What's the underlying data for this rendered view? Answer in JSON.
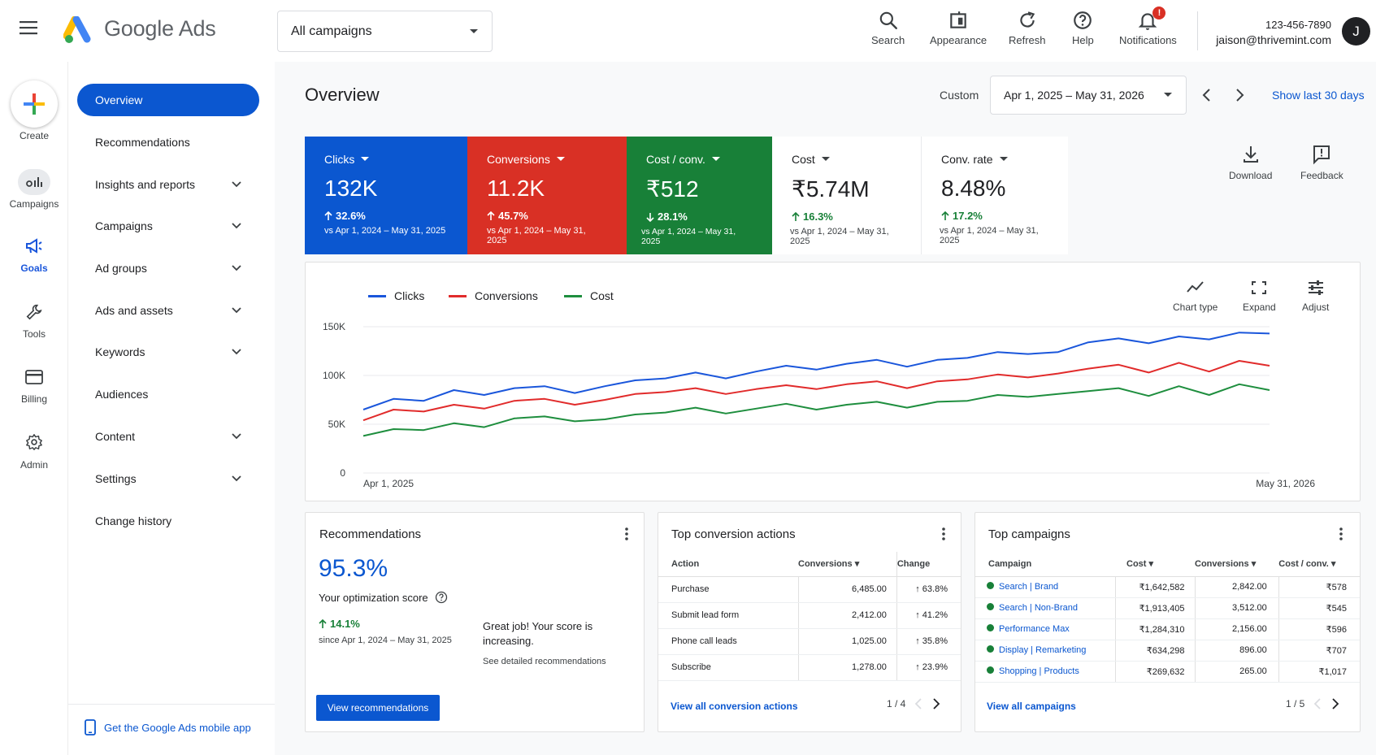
{
  "app": {
    "name_brand": "Google",
    "name_product": "Ads"
  },
  "header": {
    "campaign_select": "All campaigns",
    "tools": [
      {
        "label": "Search",
        "icon": "search-icon"
      },
      {
        "label": "Appearance",
        "icon": "appearance-icon"
      },
      {
        "label": "Refresh",
        "icon": "refresh-icon"
      },
      {
        "label": "Help",
        "icon": "help-icon"
      },
      {
        "label": "Notifications",
        "icon": "bell-icon",
        "badge": "!"
      }
    ],
    "account_phone": "123-456-7890",
    "account_email": "jaison@thrivemint.com",
    "avatar_initial": "J"
  },
  "rail": {
    "items": [
      {
        "label": "Create"
      },
      {
        "label": "Campaigns"
      },
      {
        "label": "Goals"
      },
      {
        "label": "Tools"
      },
      {
        "label": "Billing"
      },
      {
        "label": "Admin"
      }
    ]
  },
  "nav": {
    "items": [
      {
        "label": "Overview"
      },
      {
        "label": "Recommendations"
      },
      {
        "label": "Insights and reports"
      },
      {
        "label": "Campaigns"
      },
      {
        "label": "Ad groups"
      },
      {
        "label": "Ads and assets"
      },
      {
        "label": "Keywords"
      },
      {
        "label": "Audiences"
      },
      {
        "label": "Content"
      },
      {
        "label": "Settings"
      },
      {
        "label": "Change history"
      }
    ],
    "mobile_link": "Get the Google Ads mobile app"
  },
  "main": {
    "title": "Overview",
    "date_mode": "Custom",
    "date_range": "Apr 1, 2025 – May 31, 2026",
    "show_last": "Show last 30 days",
    "download": "Download",
    "feedback": "Feedback"
  },
  "kpis": [
    {
      "title": "Clicks",
      "value": "132K",
      "delta": "32.6%",
      "direction": "up",
      "vs": "vs Apr 1, 2024 – May 31, 2025",
      "color": "#0b57d0"
    },
    {
      "title": "Conversions",
      "value": "11.2K",
      "delta": "45.7%",
      "direction": "up",
      "vs": "vs Apr 1, 2024 – May 31, 2025",
      "color": "#d93025"
    },
    {
      "title": "Cost / conv.",
      "value": "₹512",
      "delta": "28.1%",
      "direction": "down",
      "vs": "vs Apr 1, 2024 – May 31, 2025",
      "color": "#188038"
    },
    {
      "title": "Cost",
      "value": "₹5.74M",
      "delta": "16.3%",
      "direction": "up",
      "vs": "vs Apr 1, 2024 – May 31, 2025",
      "color": "#ffffff"
    },
    {
      "title": "Conv. rate",
      "value": "8.48%",
      "delta": "17.2%",
      "direction": "up",
      "vs": "vs Apr 1, 2024 – May 31, 2025",
      "color": "#ffffff"
    }
  ],
  "chart_tools": {
    "chart_type": "Chart type",
    "expand": "Expand",
    "adjust": "Adjust"
  },
  "chart_data": {
    "type": "line",
    "x_start_label": "Apr 1, 2025",
    "x_end_label": "May 31, 2026",
    "yticks": [
      "150K",
      "100K",
      "50K",
      "0"
    ],
    "ylim": [
      0,
      150000
    ],
    "series": [
      {
        "name": "Clicks",
        "color": "#1a56db",
        "values": [
          65000,
          76000,
          74000,
          85000,
          80000,
          87000,
          89000,
          82000,
          89000,
          95000,
          97000,
          103000,
          97000,
          104000,
          110000,
          106000,
          112000,
          116000,
          109000,
          116000,
          118000,
          124000,
          122000,
          124000,
          134000,
          138000,
          133000,
          140000,
          137000,
          144000,
          143000
        ]
      },
      {
        "name": "Conversions",
        "color": "#e12b2b",
        "values": [
          54000,
          65000,
          63000,
          70000,
          66000,
          74000,
          76000,
          70000,
          75000,
          81000,
          83000,
          87000,
          81000,
          86000,
          90000,
          86000,
          91000,
          94000,
          87000,
          94000,
          96000,
          101000,
          98000,
          102000,
          107000,
          111000,
          103000,
          113000,
          104000,
          115000,
          110000
        ]
      },
      {
        "name": "Cost",
        "color": "#1e8e3e",
        "values": [
          38000,
          45000,
          44000,
          51000,
          47000,
          56000,
          58000,
          53000,
          55000,
          60000,
          62000,
          67000,
          61000,
          66000,
          71000,
          65000,
          70000,
          73000,
          67000,
          73000,
          74000,
          80000,
          78000,
          81000,
          84000,
          87000,
          79000,
          89000,
          80000,
          91000,
          85000
        ]
      }
    ]
  },
  "recommendations": {
    "title": "Recommendations",
    "score": "95.3%",
    "score_label": "Your optimization score",
    "delta": "14.1%",
    "since": "since Apr 1, 2024 – May 31, 2025",
    "message": "Great job! Your score is increasing.",
    "detail_link": "See detailed recommendations",
    "button": "View recommendations"
  },
  "conversion_actions": {
    "title": "Top conversion actions",
    "columns": [
      "Action",
      "Conversions",
      "Change"
    ],
    "rows": [
      {
        "action": "Purchase",
        "conversions": "6,485.00",
        "change": "63.8%"
      },
      {
        "action": "Submit lead form",
        "conversions": "2,412.00",
        "change": "41.2%"
      },
      {
        "action": "Phone call leads",
        "conversions": "1,025.00",
        "change": "35.8%"
      },
      {
        "action": "Subscribe",
        "conversions": "1,278.00",
        "change": "23.9%"
      }
    ],
    "footer_link": "View all conversion actions",
    "pager": "1 / 4"
  },
  "top_campaigns": {
    "title": "Top campaigns",
    "columns": [
      "Campaign",
      "Cost",
      "Conversions",
      "Cost / conv."
    ],
    "rows": [
      {
        "campaign": "Search | Brand",
        "cost": "₹1,642,582",
        "conversions": "2,842.00",
        "cost_conv": "₹578"
      },
      {
        "campaign": "Search | Non-Brand",
        "cost": "₹1,913,405",
        "conversions": "3,512.00",
        "cost_conv": "₹545"
      },
      {
        "campaign": "Performance Max",
        "cost": "₹1,284,310",
        "conversions": "2,156.00",
        "cost_conv": "₹596"
      },
      {
        "campaign": "Display | Remarketing",
        "cost": "₹634,298",
        "conversions": "896.00",
        "cost_conv": "₹707"
      },
      {
        "campaign": "Shopping | Products",
        "cost": "₹269,632",
        "conversions": "265.00",
        "cost_conv": "₹1,017"
      }
    ],
    "footer_link": "View all campaigns",
    "pager": "1 / 5"
  }
}
